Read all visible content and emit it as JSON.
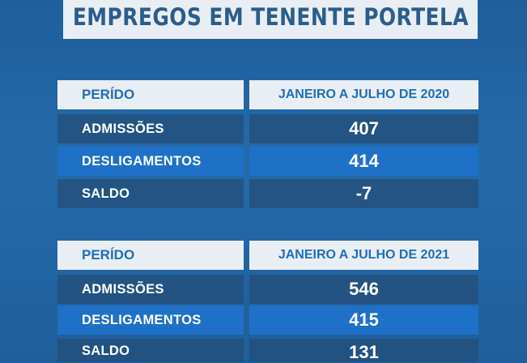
{
  "title": "EMPREGOS EM TENENTE PORTELA",
  "tables": [
    {
      "header": {
        "label": "PERÍDO",
        "period": "JANEIRO A JULHO DE 2020"
      },
      "rows": [
        {
          "label": "ADMISSÕES",
          "value": "407"
        },
        {
          "label": "DESLIGAMENTOS",
          "value": "414"
        },
        {
          "label": "SALDO",
          "value": "-7"
        }
      ]
    },
    {
      "header": {
        "label": "PERÍDO",
        "period": "JANEIRO A JULHO DE 2021"
      },
      "rows": [
        {
          "label": "ADMISSÕES",
          "value": "546"
        },
        {
          "label": "DESLIGAMENTOS",
          "value": "415"
        },
        {
          "label": "SALDO",
          "value": "131"
        }
      ]
    }
  ],
  "colors": {
    "background": "#246aaa",
    "header_bg": "#e9eef4",
    "header_text": "#1f6eb7",
    "title_text": "#2a5d8c",
    "row_highlight": "#1e71c7"
  }
}
